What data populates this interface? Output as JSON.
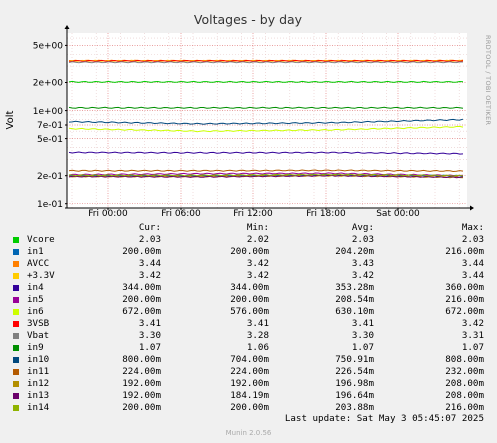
{
  "chart_data": {
    "type": "line",
    "title": "Voltages - by day",
    "ylabel": "Volt",
    "yscale": "log",
    "ylim": [
      0.09,
      6.8
    ],
    "y_ticks": [
      {
        "value": 5,
        "label": "5e+00"
      },
      {
        "value": 2,
        "label": "2e+00"
      },
      {
        "value": 1,
        "label": "1e+00"
      },
      {
        "value": 0.7,
        "label": "7e-01"
      },
      {
        "value": 0.5,
        "label": "5e-01"
      },
      {
        "value": 0.2,
        "label": "2e-01"
      },
      {
        "value": 0.1,
        "label": "1e-01"
      }
    ],
    "x_ticks": [
      "Fri 00:00",
      "Fri 06:00",
      "Fri 12:00",
      "Fri 18:00",
      "Sat 00:00"
    ],
    "grid": true,
    "vendor_text": "RRDTOOL / TOBI OETIKER",
    "columns": [
      "Cur:",
      "Min:",
      "Avg:",
      "Max:"
    ],
    "series": [
      {
        "name": "Vcore",
        "color": "#00cc00",
        "cur": "2.03",
        "min": "2.02",
        "avg": "2.03",
        "max": "2.03",
        "values": [
          2.03,
          2.03,
          2.03,
          2.03
        ]
      },
      {
        "name": "in1",
        "color": "#0066b3",
        "cur": "200.00m",
        "min": "200.00m",
        "avg": "204.20m",
        "max": "216.00m",
        "values": [
          0.2,
          0.2,
          0.204,
          0.2
        ]
      },
      {
        "name": "AVCC",
        "color": "#ff8000",
        "cur": "3.44",
        "min": "3.42",
        "avg": "3.43",
        "max": "3.44",
        "values": [
          3.43,
          3.43,
          3.43,
          3.44
        ]
      },
      {
        "name": "+3.3V",
        "color": "#ffcc00",
        "cur": "3.42",
        "min": "3.42",
        "avg": "3.42",
        "max": "3.44",
        "values": [
          3.42,
          3.42,
          3.42,
          3.42
        ]
      },
      {
        "name": "in4",
        "color": "#330099",
        "cur": "344.00m",
        "min": "344.00m",
        "avg": "353.28m",
        "max": "360.00m",
        "values": [
          0.355,
          0.352,
          0.354,
          0.344
        ]
      },
      {
        "name": "in5",
        "color": "#990099",
        "cur": "200.00m",
        "min": "200.00m",
        "avg": "208.54m",
        "max": "216.00m",
        "values": [
          0.205,
          0.21,
          0.212,
          0.2
        ]
      },
      {
        "name": "in6",
        "color": "#ccff00",
        "cur": "672.00m",
        "min": "576.00m",
        "avg": "630.10m",
        "max": "672.00m",
        "values": [
          0.64,
          0.6,
          0.62,
          0.672
        ]
      },
      {
        "name": "3VSB",
        "color": "#ff0000",
        "cur": "3.41",
        "min": "3.41",
        "avg": "3.41",
        "max": "3.42",
        "values": [
          3.41,
          3.41,
          3.41,
          3.41
        ]
      },
      {
        "name": "Vbat",
        "color": "#808080",
        "cur": "3.30",
        "min": "3.28",
        "avg": "3.30",
        "max": "3.31",
        "values": [
          3.3,
          3.3,
          3.3,
          3.3
        ]
      },
      {
        "name": "in9",
        "color": "#008f00",
        "cur": "1.07",
        "min": "1.06",
        "avg": "1.07",
        "max": "1.07",
        "values": [
          1.07,
          1.07,
          1.07,
          1.07
        ]
      },
      {
        "name": "in10",
        "color": "#00487d",
        "cur": "800.00m",
        "min": "704.00m",
        "avg": "750.91m",
        "max": "808.00m",
        "values": [
          0.76,
          0.72,
          0.74,
          0.8
        ]
      },
      {
        "name": "in11",
        "color": "#b35a00",
        "cur": "224.00m",
        "min": "224.00m",
        "avg": "226.54m",
        "max": "232.00m",
        "values": [
          0.226,
          0.226,
          0.228,
          0.224
        ]
      },
      {
        "name": "in12",
        "color": "#b38f00",
        "cur": "192.00m",
        "min": "192.00m",
        "avg": "196.98m",
        "max": "208.00m",
        "values": [
          0.196,
          0.196,
          0.2,
          0.192
        ]
      },
      {
        "name": "in13",
        "color": "#6b006b",
        "cur": "192.00m",
        "min": "184.19m",
        "avg": "196.64m",
        "max": "208.00m",
        "values": [
          0.196,
          0.194,
          0.2,
          0.192
        ]
      },
      {
        "name": "in14",
        "color": "#8fb300",
        "cur": "200.00m",
        "min": "200.00m",
        "avg": "203.88m",
        "max": "216.00m",
        "values": [
          0.202,
          0.202,
          0.206,
          0.2
        ]
      }
    ]
  },
  "footer": {
    "last_update": "Last update: Sat May  3 05:45:07 2025",
    "munin": "Munin 2.0.56"
  }
}
